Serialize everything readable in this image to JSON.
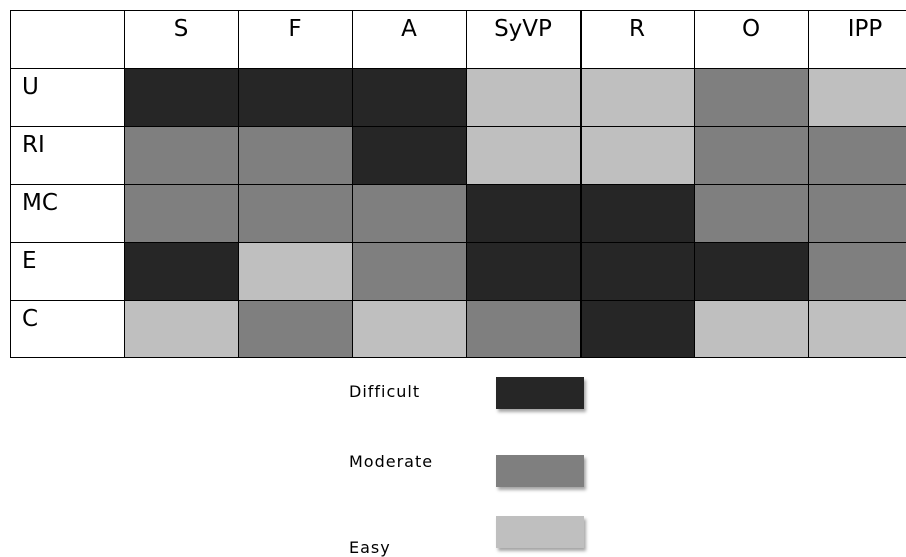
{
  "chart_data": {
    "type": "heatmap",
    "columns": [
      "S",
      "F",
      "A",
      "SyVP",
      "R",
      "O",
      "IPP"
    ],
    "rows": [
      "U",
      "RI",
      "MC",
      "E",
      "C"
    ],
    "values": [
      [
        "Difficult",
        "Difficult",
        "Difficult",
        "Easy",
        "Easy",
        "Moderate",
        "Easy"
      ],
      [
        "Moderate",
        "Moderate",
        "Difficult",
        "Easy",
        "Easy",
        "Moderate",
        "Moderate"
      ],
      [
        "Moderate",
        "Moderate",
        "Moderate",
        "Difficult",
        "Difficult",
        "Moderate",
        "Moderate"
      ],
      [
        "Difficult",
        "Easy",
        "Moderate",
        "Difficult",
        "Difficult",
        "Difficult",
        "Moderate"
      ],
      [
        "Easy",
        "Moderate",
        "Easy",
        "Moderate",
        "Difficult",
        "Easy",
        "Easy"
      ]
    ],
    "legend": [
      {
        "label": "Difficult",
        "color": "#262626"
      },
      {
        "label": "Moderate",
        "color": "#7f7f7f"
      },
      {
        "label": "Easy",
        "color": "#bfbfbf"
      }
    ],
    "legend_placement": "bottom-center"
  }
}
